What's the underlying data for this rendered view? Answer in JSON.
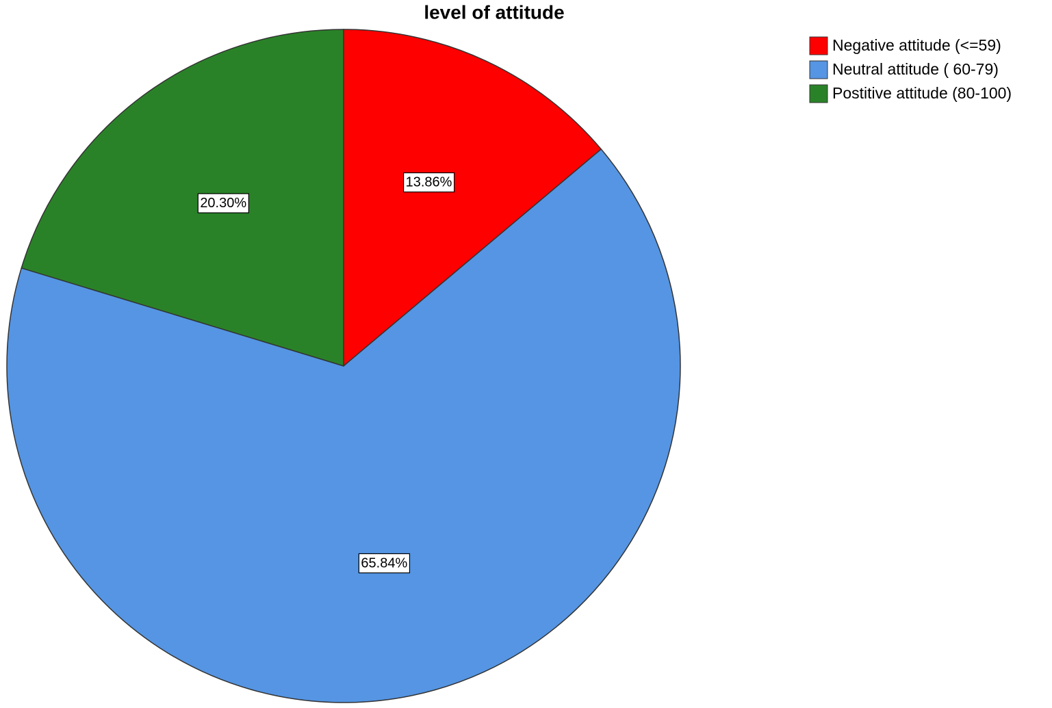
{
  "chart_data": {
    "type": "pie",
    "title": "level of attitude",
    "categories": [
      "Negative attitude (<=59)",
      "Neutral attitude ( 60-79)",
      "Postitive attitude (80-100)"
    ],
    "values": [
      13.86,
      65.84,
      20.3
    ],
    "value_labels": [
      "13.86%",
      "65.84%",
      "20.30%"
    ],
    "colors": [
      "#ff0000",
      "#5595e3",
      "#2a8228"
    ],
    "legend": "top-right"
  }
}
